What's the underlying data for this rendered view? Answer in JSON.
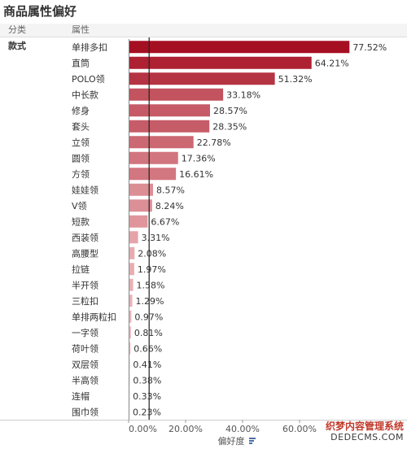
{
  "title": "商品属性偏好",
  "watermark": {
    "line1": "织梦内容管理系统",
    "line2": "DEDECMS.COM"
  },
  "chart_data": {
    "type": "bar",
    "orientation": "horizontal",
    "column_headers": [
      "分类",
      "属性"
    ],
    "group_label": "款式",
    "categories": [
      "单排多扣",
      "直筒",
      "POLO领",
      "中长款",
      "修身",
      "套头",
      "立领",
      "圆领",
      "方领",
      "娃娃领",
      "V领",
      "短款",
      "西装领",
      "高腰型",
      "拉链",
      "半开领",
      "三粒扣",
      "单排两粒扣",
      "一字领",
      "荷叶领",
      "双层领",
      "半高领",
      "连帽",
      "围巾领"
    ],
    "values": [
      77.52,
      64.21,
      51.32,
      33.18,
      28.57,
      28.35,
      22.78,
      17.36,
      16.61,
      8.57,
      8.24,
      6.67,
      3.31,
      2.08,
      1.97,
      1.58,
      1.29,
      0.97,
      0.81,
      0.66,
      0.41,
      0.38,
      0.33,
      0.23
    ],
    "value_labels": [
      "77.52%",
      "64.21%",
      "51.32%",
      "33.18%",
      "28.57%",
      "28.35%",
      "22.78%",
      "17.36%",
      "16.61%",
      "8.57%",
      "8.24%",
      "6.67%",
      "3.31%",
      "2.08%",
      "1.97%",
      "1.58%",
      "1.29%",
      "0.97%",
      "0.81%",
      "0.66%",
      "0.41%",
      "0.38%",
      "0.33%",
      "0.23%"
    ],
    "x_ticks": [
      "0.00%",
      "20.00%",
      "40.00%",
      "60.00%"
    ],
    "xlabel": "偏好度",
    "xlim": [
      0,
      80
    ],
    "reference_line_value": 7.2,
    "color_scale": [
      "#f3c4c6",
      "#a50f22"
    ],
    "grid": false
  }
}
